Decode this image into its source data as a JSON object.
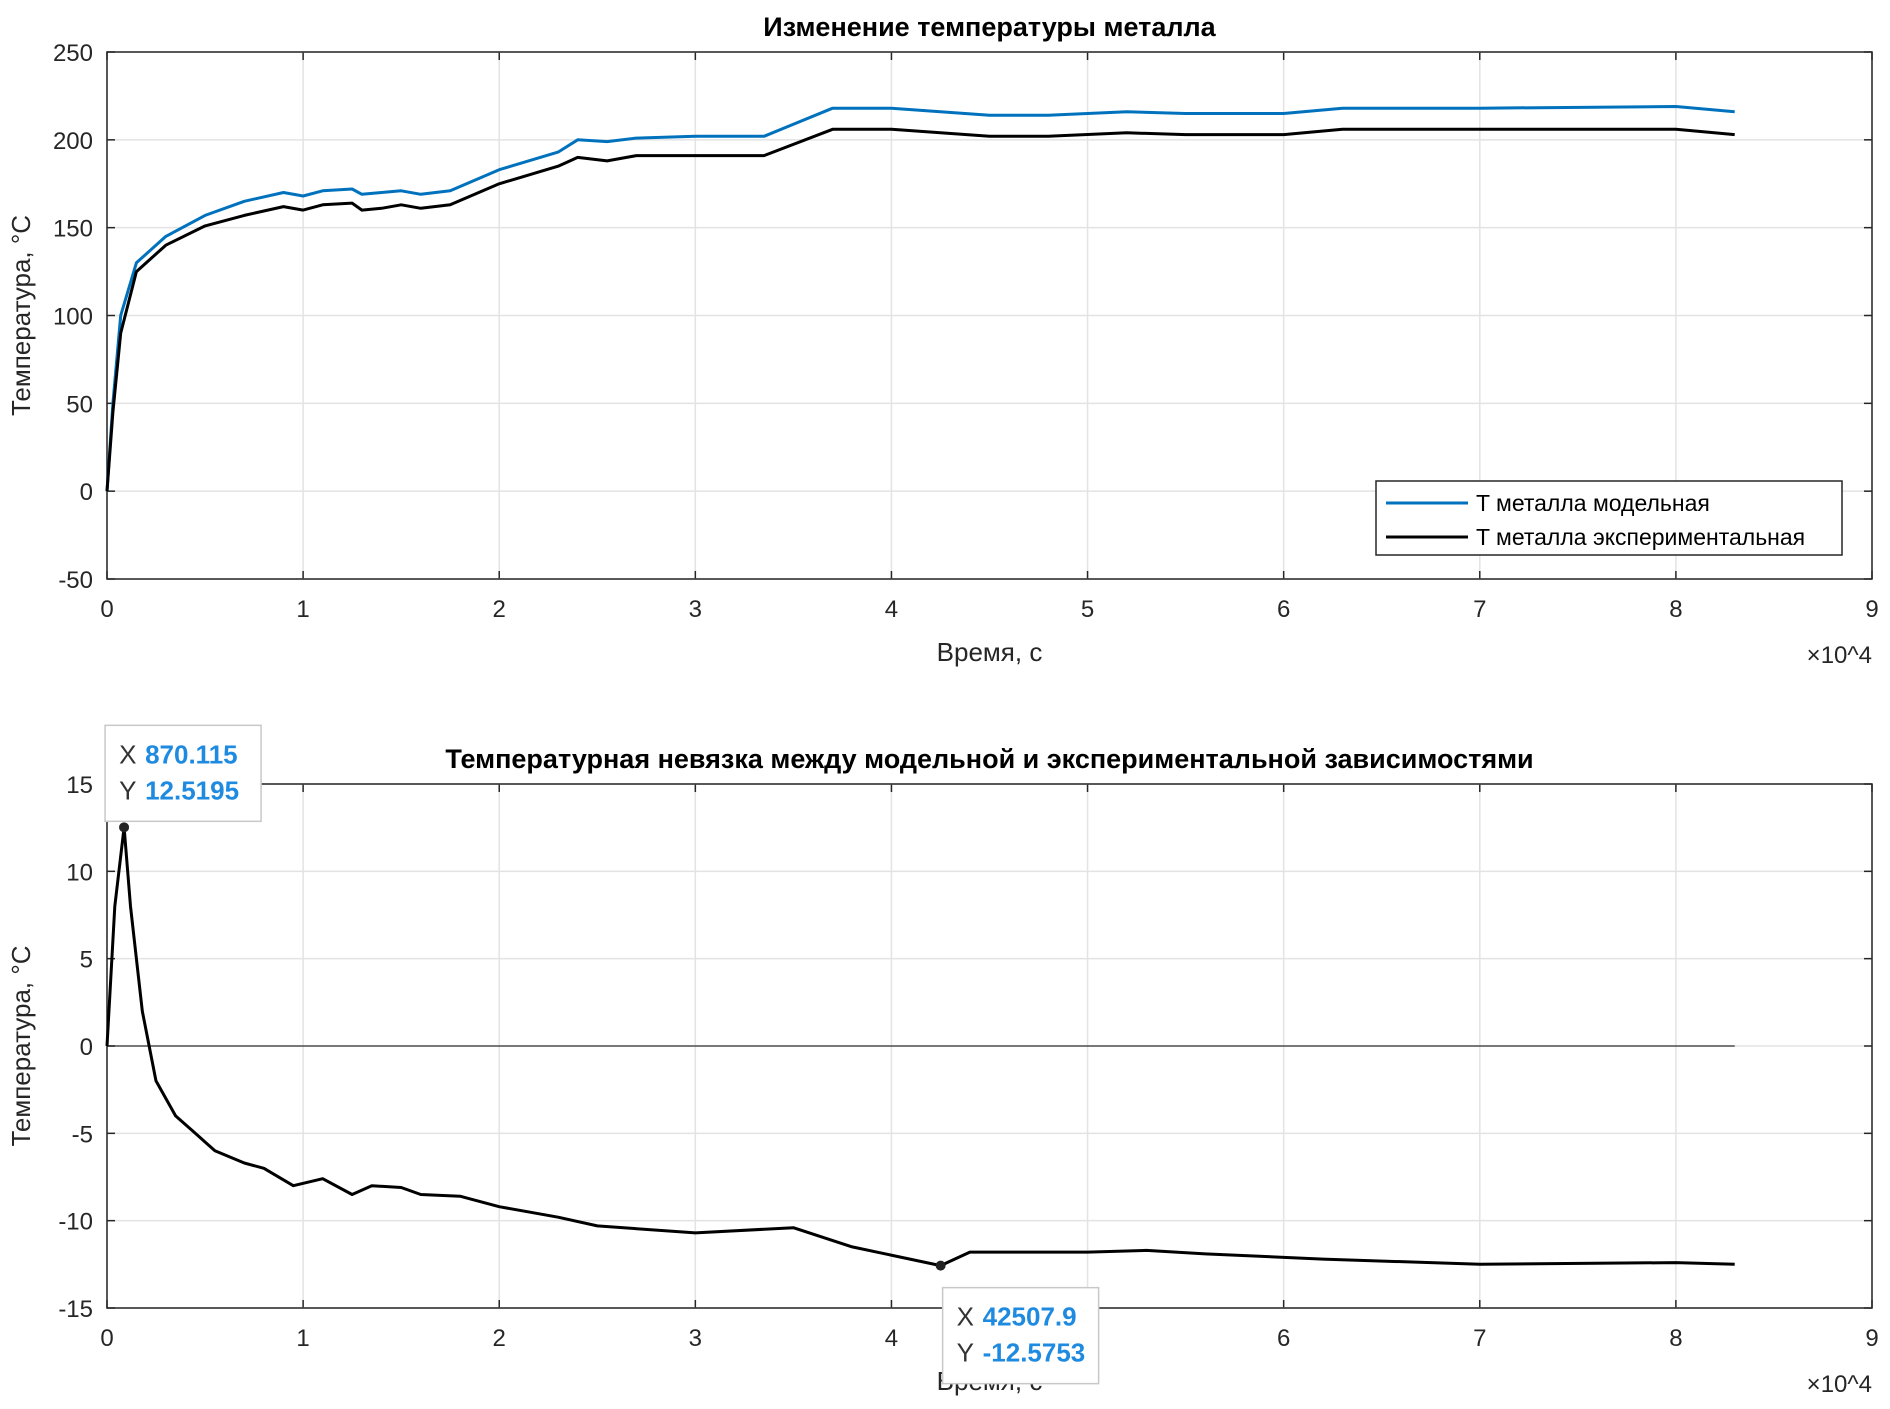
{
  "chart_data": [
    {
      "type": "line",
      "title": "Изменение температуры металла",
      "xlabel": "Время, с",
      "ylabel": "Температура, °C",
      "x_exponent_label": "×10^4",
      "xlim": [
        0,
        90000
      ],
      "ylim": [
        -50,
        250
      ],
      "xticks": [
        0,
        10000,
        20000,
        30000,
        40000,
        50000,
        60000,
        70000,
        80000,
        90000
      ],
      "xtick_labels": [
        "0",
        "1",
        "2",
        "3",
        "4",
        "5",
        "6",
        "7",
        "8",
        "9"
      ],
      "yticks": [
        -50,
        0,
        50,
        100,
        150,
        200,
        250
      ],
      "grid": true,
      "legend": "bottom-right",
      "series": [
        {
          "name": "T металла модельная",
          "color": "#0072bd",
          "x": [
            0,
            300,
            700,
            1500,
            3000,
            5000,
            7000,
            9000,
            10000,
            11000,
            12500,
            13000,
            14000,
            15000,
            16000,
            17500,
            20000,
            23000,
            24000,
            25500,
            27000,
            30000,
            33500,
            37000,
            40000,
            45000,
            48000,
            52000,
            55000,
            60000,
            63000,
            70000,
            80000,
            83000
          ],
          "y": [
            0,
            50,
            100,
            130,
            145,
            157,
            165,
            170,
            168,
            171,
            172,
            169,
            170,
            171,
            169,
            171,
            183,
            193,
            200,
            199,
            201,
            202,
            202,
            218,
            218,
            214,
            214,
            216,
            215,
            215,
            218,
            218,
            219,
            216
          ]
        },
        {
          "name": "T металла экспериментальная",
          "color": "#000000",
          "x": [
            0,
            300,
            700,
            1500,
            3000,
            5000,
            7000,
            9000,
            10000,
            11000,
            12500,
            13000,
            14000,
            15000,
            16000,
            17500,
            20000,
            23000,
            24000,
            25500,
            27000,
            30000,
            33500,
            37000,
            40000,
            45000,
            48000,
            52000,
            55000,
            60000,
            63000,
            70000,
            80000,
            83000
          ],
          "y": [
            0,
            45,
            90,
            125,
            140,
            151,
            157,
            162,
            160,
            163,
            164,
            160,
            161,
            163,
            161,
            163,
            175,
            185,
            190,
            188,
            191,
            191,
            191,
            206,
            206,
            202,
            202,
            204,
            203,
            203,
            206,
            206,
            206,
            203
          ]
        }
      ]
    },
    {
      "type": "line",
      "title": "Температурная невязка между модельной и экспериментальной зависимостями",
      "xlabel": "Время, с",
      "ylabel": "Температура, °C",
      "x_exponent_label": "×10^4",
      "xlim": [
        0,
        90000
      ],
      "ylim": [
        -15,
        15
      ],
      "xticks": [
        0,
        10000,
        20000,
        30000,
        40000,
        50000,
        60000,
        70000,
        80000,
        90000
      ],
      "xtick_labels": [
        "0",
        "1",
        "2",
        "3",
        "4",
        "5",
        "6",
        "7",
        "8",
        "9"
      ],
      "yticks": [
        -15,
        -10,
        -5,
        0,
        5,
        10,
        15
      ],
      "grid": true,
      "series": [
        {
          "color": "#000000",
          "x": [
            0,
            400,
            870.115,
            1200,
            1800,
            2500,
            3500,
            4500,
            5500,
            7000,
            8000,
            9500,
            11000,
            12500,
            13500,
            15000,
            16000,
            18000,
            20000,
            23000,
            25000,
            30000,
            35000,
            38000,
            42507.9,
            44000,
            50000,
            53000,
            56000,
            62000,
            70000,
            80000,
            83000
          ],
          "y": [
            0,
            8,
            12.5195,
            8,
            2,
            -2,
            -4,
            -5,
            -6,
            -6.7,
            -7,
            -8,
            -7.6,
            -8.5,
            -8,
            -8.1,
            -8.5,
            -8.6,
            -9.2,
            -9.8,
            -10.3,
            -10.7,
            -10.4,
            -11.5,
            -12.5753,
            -11.8,
            -11.8,
            -11.7,
            -11.9,
            -12.2,
            -12.5,
            -12.4,
            -12.5
          ]
        }
      ],
      "datatips": [
        {
          "x_label": "X",
          "x_value": "870.115",
          "y_label": "Y",
          "y_value": "12.5195",
          "x": 870.115,
          "y": 12.5195
        },
        {
          "x_label": "X",
          "x_value": "42507.9",
          "y_label": "Y",
          "y_value": "-12.5753",
          "x": 42507.9,
          "y": -12.5753
        }
      ]
    }
  ]
}
